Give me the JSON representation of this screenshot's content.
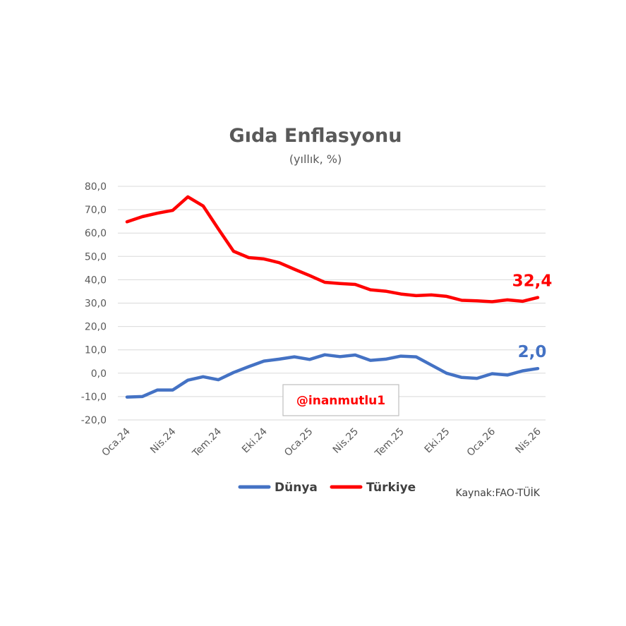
{
  "chart_data": {
    "type": "line",
    "title": "Gıda Enflasyonu",
    "subtitle": "(yıllık, %)",
    "ylim": [
      -20,
      80
    ],
    "yticks": [
      -20,
      -10,
      0,
      10,
      20,
      30,
      40,
      50,
      60,
      70,
      80
    ],
    "ytick_labels": [
      "-20,0",
      "-10,0",
      "0,0",
      "10,0",
      "20,0",
      "30,0",
      "40,0",
      "50,0",
      "60,0",
      "70,0",
      "80,0"
    ],
    "x": [
      "Oca.24",
      "Şub.24",
      "Mar.24",
      "Nis.24",
      "May.24",
      "Haz.24",
      "Tem.24",
      "Ağu.24",
      "Eyl.24",
      "Eki.24",
      "Kas.24",
      "Ara.24",
      "Oca.25",
      "Şub.25",
      "Mar.25",
      "Nis.25",
      "May.25",
      "Haz.25",
      "Tem.25",
      "Ağu.25",
      "Eyl.25",
      "Eki.25",
      "Kas.25",
      "Ara.25",
      "Oca.26",
      "Şub.26",
      "Mar.26",
      "Nis.26"
    ],
    "xtick_labels": [
      "Oca.24",
      "Nis.24",
      "Tem.24",
      "Eki.24",
      "Oca.25",
      "Nis.25",
      "Tem.25",
      "Eki.25",
      "Oca.26",
      "Nis.26"
    ],
    "grid": true,
    "legend_position": "bottom",
    "series": [
      {
        "name": "Dünya",
        "color": "#4472c4",
        "values": [
          -10.2,
          -10.0,
          -7.2,
          -7.2,
          -3.0,
          -1.5,
          -2.8,
          0.3,
          2.8,
          5.2,
          6.0,
          7.0,
          5.9,
          7.9,
          7.1,
          7.8,
          5.5,
          6.0,
          7.3,
          7.0,
          3.5,
          0.0,
          -1.8,
          -2.2,
          -0.2,
          -0.8,
          1.0,
          2.0
        ],
        "end_label": "2,0"
      },
      {
        "name": "Türkiye",
        "color": "#ff0000",
        "values": [
          64.8,
          67.0,
          68.5,
          69.7,
          75.5,
          71.6,
          61.8,
          52.2,
          49.5,
          48.9,
          47.3,
          44.5,
          41.8,
          38.9,
          38.4,
          38.0,
          35.7,
          35.1,
          33.9,
          33.2,
          33.5,
          32.9,
          31.2,
          31.0,
          30.6,
          31.4,
          30.8,
          32.4
        ],
        "end_label": "32,4"
      }
    ],
    "annotation": "@inanmutlu1",
    "source": "Kaynak:FAO-TÜİK"
  }
}
